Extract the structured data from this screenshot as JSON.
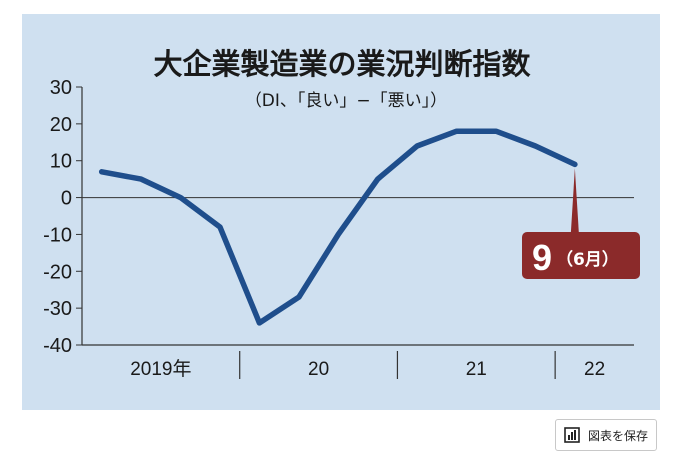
{
  "chart_data": {
    "type": "line",
    "title": "大企業製造業の業況判断指数",
    "subtitle": "（DI、「良い」−「悪い」）",
    "ylim": [
      -40,
      30
    ],
    "yticks": [
      30,
      20,
      10,
      0,
      -10,
      -20,
      -30,
      -40
    ],
    "ytick_labels": [
      "30",
      "20",
      "10",
      "0",
      "-10",
      "-20",
      "-30",
      "-40"
    ],
    "x_groups": [
      {
        "label": "2019年",
        "start": 0,
        "end": 4
      },
      {
        "label": "20",
        "start": 4,
        "end": 8
      },
      {
        "label": "21",
        "start": 8,
        "end": 12
      },
      {
        "label": "22",
        "start": 12,
        "end": 14
      }
    ],
    "series": [
      {
        "x": [
          0.5,
          1.5,
          2.5,
          3.5,
          4.5,
          5.5,
          6.5,
          7.5,
          8.5,
          9.5,
          10.5,
          11.5,
          12.5,
          13.5
        ],
        "values": [
          7,
          5,
          0,
          -8,
          -34,
          -27,
          -10,
          5,
          14,
          18,
          18,
          14,
          9,
          null
        ],
        "color": "#1f4e8c"
      }
    ],
    "grid": false,
    "annotation": {
      "value": "9",
      "label": "（6月）",
      "color": "#8b2a2a"
    }
  },
  "toolbar": {
    "save_label": "図表を保存",
    "save_icon": "bar-chart-icon"
  }
}
